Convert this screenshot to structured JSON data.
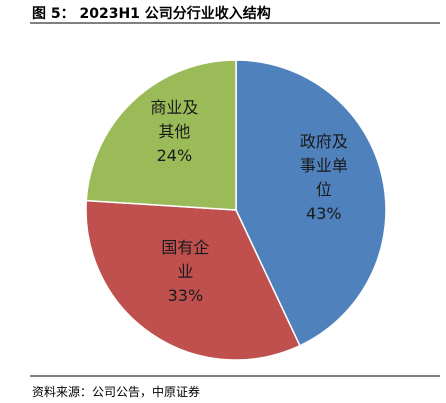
{
  "chart_data": {
    "type": "pie",
    "title": "图 5： 2023H1 公司分行业收入结构",
    "categories": [
      "政府及事业单位",
      "国有企业",
      "商业及其他"
    ],
    "values": [
      43,
      33,
      24
    ],
    "value_labels": [
      "43%",
      "33%",
      "24%"
    ],
    "colors": [
      "#4f81bd",
      "#c0504d",
      "#9bbb59"
    ],
    "source": "资料来源：公司公告，中原证券"
  }
}
